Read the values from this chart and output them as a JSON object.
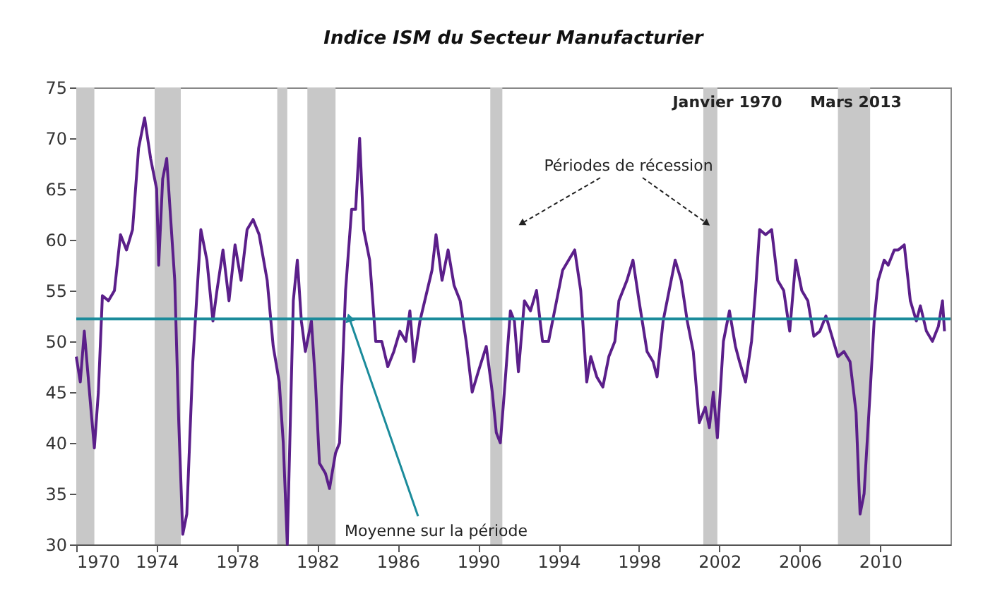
{
  "chart_data": {
    "type": "line",
    "title": "Indice ISM du Secteur Manufacturier",
    "x": [
      1970.0,
      1970.2,
      1970.4,
      1970.7,
      1970.9,
      1971.1,
      1971.3,
      1971.6,
      1971.9,
      1972.2,
      1972.5,
      1972.8,
      1973.1,
      1973.4,
      1973.7,
      1974.0,
      1974.1,
      1974.3,
      1974.5,
      1974.7,
      1974.9,
      1975.1,
      1975.3,
      1975.5,
      1975.8,
      1976.0,
      1976.2,
      1976.5,
      1976.8,
      1977.0,
      1977.3,
      1977.6,
      1977.9,
      1978.2,
      1978.5,
      1978.8,
      1979.1,
      1979.5,
      1979.8,
      1980.1,
      1980.3,
      1980.5,
      1980.8,
      1981.0,
      1981.2,
      1981.4,
      1981.7,
      1981.9,
      1982.1,
      1982.4,
      1982.6,
      1982.9,
      1983.1,
      1983.4,
      1983.7,
      1983.9,
      1984.1,
      1984.3,
      1984.6,
      1984.9,
      1985.2,
      1985.5,
      1985.8,
      1986.1,
      1986.4,
      1986.6,
      1986.8,
      1987.1,
      1987.4,
      1987.7,
      1987.9,
      1988.2,
      1988.5,
      1988.8,
      1989.1,
      1989.4,
      1989.7,
      1990.0,
      1990.4,
      1990.7,
      1990.9,
      1991.1,
      1991.3,
      1991.6,
      1991.8,
      1992.0,
      1992.3,
      1992.6,
      1992.9,
      1993.2,
      1993.5,
      1993.9,
      1994.2,
      1994.5,
      1994.8,
      1995.1,
      1995.4,
      1995.6,
      1995.9,
      1996.2,
      1996.5,
      1996.8,
      1997.0,
      1997.4,
      1997.7,
      1998.0,
      1998.4,
      1998.7,
      1998.9,
      1999.2,
      1999.5,
      1999.8,
      2000.1,
      2000.4,
      2000.7,
      2001.0,
      2001.3,
      2001.5,
      2001.7,
      2001.9,
      2002.2,
      2002.5,
      2002.8,
      2003.0,
      2003.3,
      2003.6,
      2003.8,
      2004.0,
      2004.3,
      2004.6,
      2004.9,
      2005.2,
      2005.5,
      2005.8,
      2006.1,
      2006.4,
      2006.7,
      2007.0,
      2007.3,
      2007.6,
      2007.9,
      2008.2,
      2008.5,
      2008.8,
      2009.0,
      2009.2,
      2009.5,
      2009.7,
      2009.9,
      2010.2,
      2010.4,
      2010.7,
      2010.9,
      2011.2,
      2011.5,
      2011.8,
      2012.0,
      2012.3,
      2012.6,
      2012.9,
      2013.1,
      2013.2
    ],
    "series": [
      {
        "color": "#5b1f8a",
        "values": [
          48.5,
          46,
          51,
          44,
          39.5,
          45,
          54.5,
          54,
          55,
          60.5,
          59,
          61,
          69,
          72,
          68,
          65,
          57.5,
          66,
          68,
          62,
          56,
          42,
          31,
          33,
          48,
          54.5,
          61,
          58,
          52,
          55,
          59,
          54,
          59.5,
          56,
          61,
          62,
          60.5,
          56,
          49.5,
          46,
          40,
          30,
          54,
          58,
          52,
          49,
          52,
          46,
          38,
          37,
          35.5,
          39,
          40,
          55,
          63,
          63,
          70,
          61,
          58,
          50,
          50,
          47.5,
          49,
          51,
          50,
          53,
          48,
          52,
          54.5,
          57,
          60.5,
          56,
          59,
          55.5,
          54,
          50,
          45,
          47,
          49.5,
          45,
          41,
          40,
          45,
          53,
          52,
          47,
          54,
          53,
          55,
          50,
          50,
          54,
          57,
          58,
          59,
          55,
          46,
          48.5,
          46.5,
          45.5,
          48.5,
          50,
          54,
          56,
          58,
          54,
          49,
          48,
          46.5,
          52,
          55,
          58,
          56,
          52,
          49,
          42,
          43.5,
          41.5,
          45,
          40.5,
          50,
          53,
          49.5,
          48,
          46,
          50,
          55,
          61,
          60.5,
          61,
          56,
          55,
          51,
          58,
          55,
          54,
          50.5,
          51,
          52.5,
          50.5,
          48.5,
          49,
          48,
          43,
          33,
          35,
          45,
          52,
          56,
          58,
          57.5,
          59,
          59,
          59.5,
          54,
          52,
          53.5,
          51,
          50,
          51.5,
          54,
          51
        ]
      }
    ],
    "xlim": [
      1970,
      2013.5
    ],
    "xticks": [
      1970,
      1974,
      1978,
      1982,
      1986,
      1990,
      1994,
      1998,
      2002,
      2006,
      2010
    ],
    "ylim": [
      30,
      75
    ],
    "yticks": [
      30,
      35,
      40,
      45,
      50,
      55,
      60,
      65,
      70,
      75
    ],
    "grid": false,
    "line_style": "solid",
    "marker": "none",
    "ref_lines": [
      {
        "axis": "y",
        "value": 52.2,
        "color": "#1b8b9b"
      }
    ],
    "bands": [
      {
        "axis": "x",
        "from": 1970.0,
        "to": 1970.9,
        "color": "#c8c8c8"
      },
      {
        "axis": "x",
        "from": 1973.9,
        "to": 1975.2,
        "color": "#c8c8c8"
      },
      {
        "axis": "x",
        "from": 1980.0,
        "to": 1980.5,
        "color": "#c8c8c8"
      },
      {
        "axis": "x",
        "from": 1981.5,
        "to": 1982.9,
        "color": "#c8c8c8"
      },
      {
        "axis": "x",
        "from": 1990.6,
        "to": 1991.2,
        "color": "#c8c8c8"
      },
      {
        "axis": "x",
        "from": 2001.2,
        "to": 2001.9,
        "color": "#c8c8c8"
      },
      {
        "axis": "x",
        "from": 2007.9,
        "to": 2009.5,
        "color": "#c8c8c8"
      }
    ],
    "annotations": [
      "Janvier 1970",
      "Mars 2013",
      "Périodes de récession",
      {
        "text": "Moyenne sur la période",
        "x": 1983.6,
        "y": 52.2
      }
    ]
  }
}
